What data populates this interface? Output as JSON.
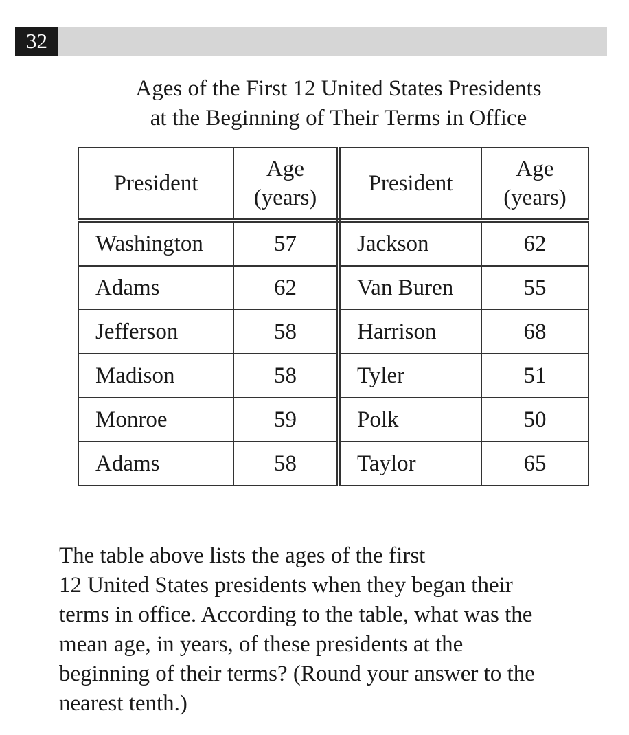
{
  "question_number": "32",
  "title": {
    "line1": "Ages of the First 12 United States Presidents",
    "line2": "at the Beginning of Their Terms in Office"
  },
  "table": {
    "headers": {
      "president": "President",
      "age_line1": "Age",
      "age_line2": "(years)"
    },
    "rows": [
      {
        "left_name": "Washington",
        "left_age": "57",
        "right_name": "Jackson",
        "right_age": "62"
      },
      {
        "left_name": "Adams",
        "left_age": "62",
        "right_name": "Van Buren",
        "right_age": "55"
      },
      {
        "left_name": "Jefferson",
        "left_age": "58",
        "right_name": "Harrison",
        "right_age": "68"
      },
      {
        "left_name": "Madison",
        "left_age": "58",
        "right_name": "Tyler",
        "right_age": "51"
      },
      {
        "left_name": "Monroe",
        "left_age": "59",
        "right_name": "Polk",
        "right_age": "50"
      },
      {
        "left_name": "Adams",
        "left_age": "58",
        "right_name": "Taylor",
        "right_age": "65"
      }
    ]
  },
  "question": {
    "lines": [
      "The table above lists the ages of the first",
      "12 United States presidents when they began their",
      "terms in office.  According to the table, what was the",
      "mean age, in years, of these presidents at the",
      "beginning of their terms? (Round your answer to the",
      "nearest tenth.)"
    ]
  }
}
